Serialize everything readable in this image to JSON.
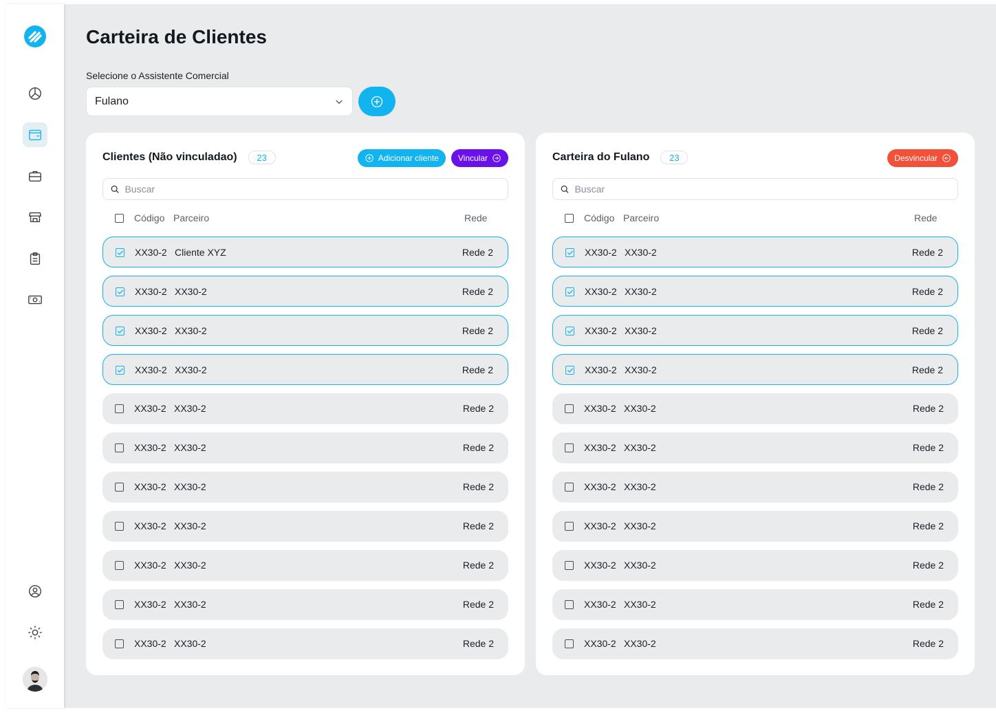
{
  "page": {
    "title": "Carteira de Clientes"
  },
  "assistant_select": {
    "label": "Selecione o Assistente Comercial",
    "value": "Fulano"
  },
  "sidebar": {
    "items": [
      {
        "icon": "pie-chart-icon",
        "active": false
      },
      {
        "icon": "wallet-icon",
        "active": true
      },
      {
        "icon": "briefcase-icon",
        "active": false
      },
      {
        "icon": "store-icon",
        "active": false
      },
      {
        "icon": "clipboard-icon",
        "active": false
      },
      {
        "icon": "money-icon",
        "active": false
      }
    ],
    "bottom": [
      "user-circle-icon",
      "sun-icon",
      "avatar"
    ]
  },
  "colors": {
    "accent": "#11b4ef",
    "purple": "#6a11ea",
    "red": "#f1503a",
    "background": "#e9ebec"
  },
  "left_panel": {
    "title": "Clientes (Não vinculadao)",
    "count": "23",
    "add_button": "Adicionar cliente",
    "link_button": "Vincular",
    "search_placeholder": "Buscar",
    "columns": {
      "code": "Código",
      "partner": "Parceiro",
      "network": "Rede"
    },
    "rows": [
      {
        "code": "XX30-2",
        "partner": "Cliente XYZ",
        "network": "Rede 2",
        "checked": true
      },
      {
        "code": "XX30-2",
        "partner": "XX30-2",
        "network": "Rede 2",
        "checked": true
      },
      {
        "code": "XX30-2",
        "partner": "XX30-2",
        "network": "Rede 2",
        "checked": true
      },
      {
        "code": "XX30-2",
        "partner": "XX30-2",
        "network": "Rede 2",
        "checked": true
      },
      {
        "code": "XX30-2",
        "partner": "XX30-2",
        "network": "Rede 2",
        "checked": false
      },
      {
        "code": "XX30-2",
        "partner": "XX30-2",
        "network": "Rede 2",
        "checked": false
      },
      {
        "code": "XX30-2",
        "partner": "XX30-2",
        "network": "Rede 2",
        "checked": false
      },
      {
        "code": "XX30-2",
        "partner": "XX30-2",
        "network": "Rede 2",
        "checked": false
      },
      {
        "code": "XX30-2",
        "partner": "XX30-2",
        "network": "Rede 2",
        "checked": false
      },
      {
        "code": "XX30-2",
        "partner": "XX30-2",
        "network": "Rede 2",
        "checked": false
      },
      {
        "code": "XX30-2",
        "partner": "XX30-2",
        "network": "Rede 2",
        "checked": false
      }
    ]
  },
  "right_panel": {
    "title": "Carteira do Fulano",
    "count": "23",
    "unlink_button": "Desvincular",
    "search_placeholder": "Buscar",
    "columns": {
      "code": "Código",
      "partner": "Parceiro",
      "network": "Rede"
    },
    "rows": [
      {
        "code": "XX30-2",
        "partner": "XX30-2",
        "network": "Rede 2",
        "checked": true
      },
      {
        "code": "XX30-2",
        "partner": "XX30-2",
        "network": "Rede 2",
        "checked": true
      },
      {
        "code": "XX30-2",
        "partner": "XX30-2",
        "network": "Rede 2",
        "checked": true
      },
      {
        "code": "XX30-2",
        "partner": "XX30-2",
        "network": "Rede 2",
        "checked": true
      },
      {
        "code": "XX30-2",
        "partner": "XX30-2",
        "network": "Rede 2",
        "checked": false
      },
      {
        "code": "XX30-2",
        "partner": "XX30-2",
        "network": "Rede 2",
        "checked": false
      },
      {
        "code": "XX30-2",
        "partner": "XX30-2",
        "network": "Rede 2",
        "checked": false
      },
      {
        "code": "XX30-2",
        "partner": "XX30-2",
        "network": "Rede 2",
        "checked": false
      },
      {
        "code": "XX30-2",
        "partner": "XX30-2",
        "network": "Rede 2",
        "checked": false
      },
      {
        "code": "XX30-2",
        "partner": "XX30-2",
        "network": "Rede 2",
        "checked": false
      },
      {
        "code": "XX30-2",
        "partner": "XX30-2",
        "network": "Rede 2",
        "checked": false
      }
    ]
  }
}
